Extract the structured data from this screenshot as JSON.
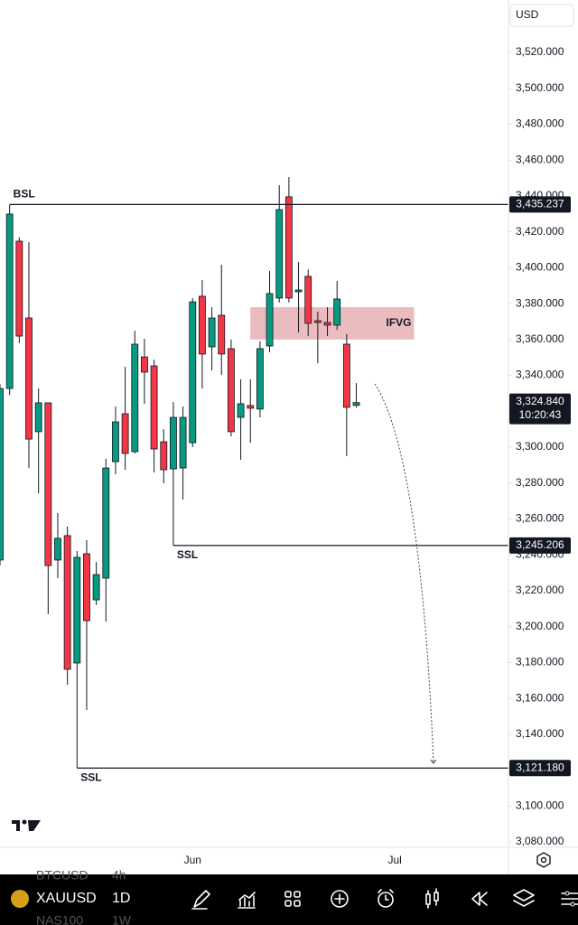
{
  "chart_data": {
    "type": "candlestick",
    "currency": "USD",
    "open": [
      3237.1,
      3332.7,
      3414.8,
      3372,
      3308.6,
      3324.7,
      3237.1,
      3250.7,
      3179.7,
      3240.6,
      3214.9,
      3227,
      3291.9,
      3318.6,
      3297.5,
      3350.3,
      3345.3,
      3303,
      3287.9,
      3288.4,
      3302.5,
      3384.1,
      3355.9,
      3373.5,
      3354.9,
      3316.6,
      3323.2,
      3321.2,
      3356.4,
      3383.1,
      3439.5,
      3386.6,
      3395.2,
      3370.5,
      3369.5,
      3368,
      3357.4,
      3323.3
    ],
    "high": [
      3335,
      3435.2,
      3417,
      3414.3,
      3332.7,
      3324.7,
      3263.3,
      3255.7,
      3242.1,
      3248.2,
      3236,
      3293.5,
      3322.7,
      3344.8,
      3364.9,
      3360.4,
      3348.8,
      3310,
      3325.2,
      3322.7,
      3383,
      3393.1,
      3378,
      3401.7,
      3360,
      3337.8,
      3337.8,
      3359,
      3398.2,
      3446,
      3450.5,
      3403.2,
      3399,
      3375.5,
      3378,
      3392.6,
      3363,
      3335.7
    ],
    "low": [
      3234,
      3329,
      3358,
      3288.4,
      3274.3,
      3206.9,
      3227,
      3167.6,
      3121.2,
      3153.5,
      3212,
      3202.8,
      3284.9,
      3287.4,
      3296.5,
      3324.2,
      3285.9,
      3279.9,
      3245.2,
      3270.8,
      3300,
      3332.7,
      3342.8,
      3340.3,
      3306,
      3293,
      3302.5,
      3316.6,
      3352.9,
      3380.6,
      3380.6,
      3364,
      3361.9,
      3346.8,
      3362,
      3365.4,
      3295,
      3322
    ],
    "close": [
      3332.7,
      3429.9,
      3361.9,
      3304.5,
      3324.7,
      3234,
      3249.2,
      3176.2,
      3238.6,
      3203.3,
      3229,
      3288.4,
      3314.1,
      3296.5,
      3357.4,
      3341.8,
      3299,
      3287.4,
      3316.6,
      3316.6,
      3381,
      3351.9,
      3372,
      3351.9,
      3308.6,
      3324.2,
      3321.7,
      3354.9,
      3385.6,
      3432.4,
      3383.1,
      3387.6,
      3369,
      3369.5,
      3368,
      3382.6,
      3322.2,
      3324.84
    ],
    "up_color": "#089981",
    "down_color": "#f23645",
    "xlim": [
      0,
      52.8
    ],
    "xticks": [
      {
        "value": 20,
        "label": "Jun"
      },
      {
        "value": 41,
        "label": "Jul"
      }
    ],
    "ylim": [
      3077,
      3549.2
    ],
    "yticks": [
      {
        "value": 3080,
        "label": "3,080.000"
      },
      {
        "value": 3100,
        "label": "3,100.000"
      },
      {
        "value": 3120,
        "label": "3,120.000"
      },
      {
        "value": 3140,
        "label": "3,140.000"
      },
      {
        "value": 3160,
        "label": "3,160.000"
      },
      {
        "value": 3180,
        "label": "3,180.000"
      },
      {
        "value": 3200,
        "label": "3,200.000"
      },
      {
        "value": 3220,
        "label": "3,220.000"
      },
      {
        "value": 3240,
        "label": "3,240.000"
      },
      {
        "value": 3260,
        "label": "3,260.000"
      },
      {
        "value": 3280,
        "label": "3,280.000"
      },
      {
        "value": 3300,
        "label": "3,300.000"
      },
      {
        "value": 3320,
        "label": "3,320.000"
      },
      {
        "value": 3340,
        "label": "3,340.000"
      },
      {
        "value": 3360,
        "label": "3,360.000"
      },
      {
        "value": 3380,
        "label": "3,380.000"
      },
      {
        "value": 3400,
        "label": "3,400.000"
      },
      {
        "value": 3420,
        "label": "3,420.000"
      },
      {
        "value": 3440,
        "label": "3,440.000"
      },
      {
        "value": 3460,
        "label": "3,460.000"
      },
      {
        "value": 3480,
        "label": "3,480.000"
      },
      {
        "value": 3500,
        "label": "3,500.000"
      },
      {
        "value": 3520,
        "label": "3,520.000"
      }
    ],
    "levels": [
      {
        "label": "BSL",
        "price": 3435.237,
        "price_label": "3,435.237",
        "from": 1
      },
      {
        "label": "SSL",
        "price": 3245.206,
        "price_label": "3,245.206",
        "from": 18
      },
      {
        "label": "SSL",
        "price": 3121.18,
        "price_label": "3,121.180",
        "from": 8
      }
    ],
    "zone": {
      "label": "IFVG",
      "from": 26,
      "to": 43,
      "high": 3378,
      "low": 3360,
      "color": "#e8b4b8"
    },
    "last_price": {
      "value": 3324.84,
      "label": "3,324.840",
      "countdown": "10:20:43"
    }
  },
  "toolbar": {
    "symbol": "XAUUSD",
    "interval": "1D",
    "watchlist": [
      {
        "symbol": "BTCUSD",
        "interval": "4h"
      },
      {
        "symbol": "NAS100",
        "interval": "1W"
      }
    ]
  }
}
